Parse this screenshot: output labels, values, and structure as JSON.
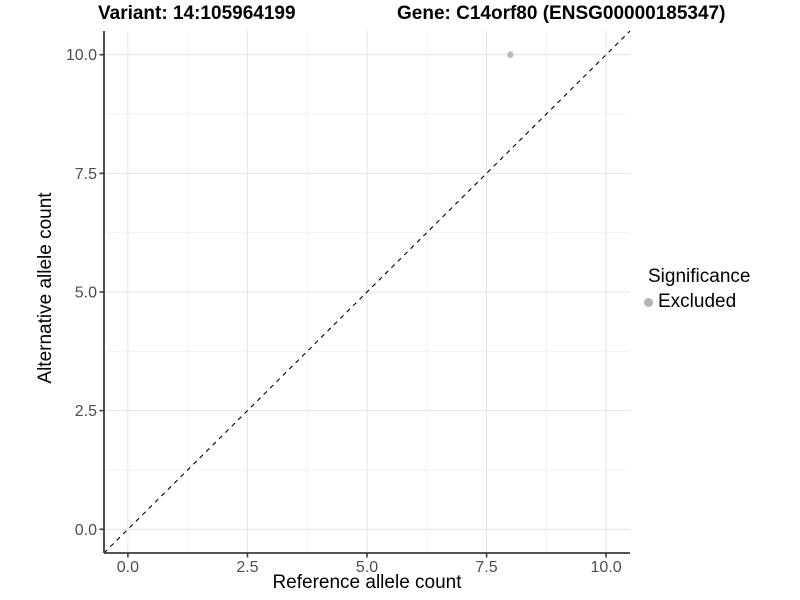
{
  "chart_data": {
    "type": "scatter",
    "title_left": "Variant: 14:105964199",
    "title_right": "Gene: C14orf80 (ENSG00000185347)",
    "xlabel": "Reference allele count",
    "ylabel": "Alternative allele count",
    "xlim": [
      -0.5,
      10.5
    ],
    "ylim": [
      -0.5,
      10.5
    ],
    "x_ticks": [
      {
        "value": 0,
        "label": "0.0"
      },
      {
        "value": 2.5,
        "label": "2.5"
      },
      {
        "value": 5,
        "label": "5.0"
      },
      {
        "value": 7.5,
        "label": "7.5"
      },
      {
        "value": 10,
        "label": "10.0"
      }
    ],
    "y_ticks": [
      {
        "value": 0,
        "label": "0.0"
      },
      {
        "value": 2.5,
        "label": "2.5"
      },
      {
        "value": 5,
        "label": "5.0"
      },
      {
        "value": 7.5,
        "label": "7.5"
      },
      {
        "value": 10,
        "label": "10.0"
      }
    ],
    "grid": {
      "major": true,
      "minor": true
    },
    "reference_line": {
      "type": "abline",
      "slope": 1,
      "intercept": 0,
      "linetype": "dashed",
      "color": "#000000"
    },
    "series": [
      {
        "name": "Excluded",
        "color": "#b9b9b9",
        "points": [
          {
            "x": 8,
            "y": 10
          }
        ]
      }
    ],
    "legend": {
      "title": "Significance",
      "position": "right",
      "entries": [
        {
          "label": "Excluded",
          "color": "#b3b3b3"
        }
      ]
    },
    "style": {
      "background": "#ffffff",
      "grid_major_color": "#e4e4e4",
      "grid_minor_color": "#f2f2f2",
      "axis_line_color": "#3c3c3c",
      "tick_color": "#3c3c3c",
      "tick_label_color": "#4d4d4d"
    }
  }
}
